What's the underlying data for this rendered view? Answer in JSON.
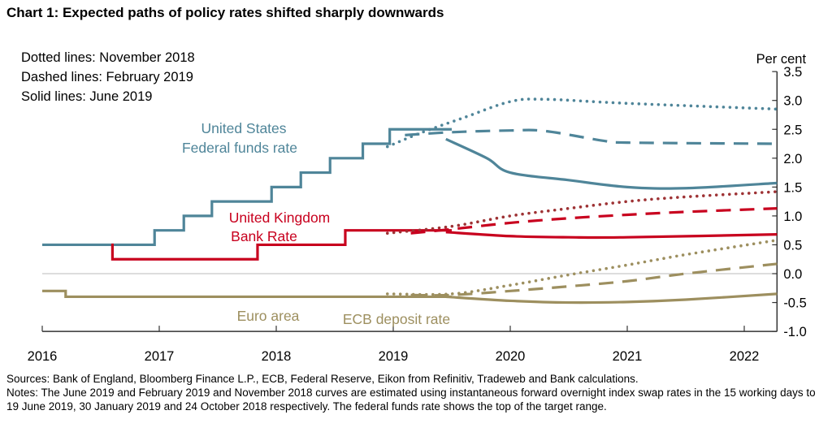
{
  "title": "Chart 1:  Expected paths of policy rates shifted sharply downwards",
  "notes_legend": [
    "Dotted lines: November 2018",
    "Dashed lines: February 2019",
    "Solid lines: June 2019"
  ],
  "footer": {
    "sources": "Sources:  Bank of England, Bloomberg Finance L.P., ECB, Federal Reserve, Eikon from Refinitiv, Tradeweb and Bank calculations.",
    "notes": "Notes:  The June 2019 and February 2019 and November 2018 curves are estimated using instantaneous forward overnight index swap rates in the 15 working days to 19 June 2019, 30 January 2019 and 24 October 2018 respectively.  The federal funds rate shows the top of the target range."
  },
  "chart_data": {
    "type": "line",
    "ylabel": "Per cent",
    "ylim": [
      -1.0,
      3.5
    ],
    "xlim": [
      2016,
      2022.28
    ],
    "yticks": [
      "3.5",
      "3.0",
      "2.5",
      "2.0",
      "1.5",
      "1.0",
      "0.5",
      "0.0",
      "-0.5",
      "-1.0"
    ],
    "xticks": [
      "2016",
      "2017",
      "2018",
      "2019",
      "2020",
      "2021",
      "2022"
    ],
    "grid": false,
    "colors": {
      "us": "#4f8599",
      "uk": "#c8001e",
      "uk_dotted": "#9e3234",
      "ea": "#9d8f5f"
    },
    "labels": {
      "us": [
        "United States",
        "Federal funds rate"
      ],
      "uk": [
        "United Kingdom",
        "Bank Rate"
      ],
      "ea_1": "Euro area",
      "ea_2": "ECB deposit rate"
    },
    "series": [
      {
        "key": "us",
        "style": "step",
        "x": [
          2016,
          2016.96,
          2017.21,
          2017.45,
          2017.96,
          2018.21,
          2018.46,
          2018.74,
          2018.97,
          2019.5
        ],
        "y": [
          0.5,
          0.75,
          1.0,
          1.25,
          1.5,
          1.75,
          2.0,
          2.25,
          2.5,
          2.5
        ]
      },
      {
        "key": "uk",
        "style": "step",
        "x": [
          2016.59,
          2016.6,
          2017.84,
          2018.59,
          2019.5
        ],
        "y": [
          0.5,
          0.25,
          0.5,
          0.75,
          0.75
        ]
      },
      {
        "key": "ea",
        "style": "step",
        "x": [
          2016,
          2016.2,
          2019.5
        ],
        "y": [
          -0.3,
          -0.4,
          -0.4
        ]
      },
      {
        "key": "us",
        "style": "dotted",
        "x": [
          2018.95,
          2019.25,
          2019.6,
          2020,
          2020.3,
          2021,
          2022.28
        ],
        "y": [
          2.2,
          2.45,
          2.7,
          2.98,
          3.02,
          2.95,
          2.85
        ]
      },
      {
        "key": "us",
        "style": "dashed",
        "x": [
          2019.1,
          2019.5,
          2020,
          2020.3,
          2020.8,
          2021,
          2022.28
        ],
        "y": [
          2.4,
          2.45,
          2.48,
          2.47,
          2.3,
          2.27,
          2.25
        ]
      },
      {
        "key": "us",
        "style": "solid",
        "x": [
          2019.45,
          2019.8,
          2020,
          2020.5,
          2021,
          2021.5,
          2022.28
        ],
        "y": [
          2.33,
          2.0,
          1.75,
          1.62,
          1.5,
          1.48,
          1.57
        ]
      },
      {
        "key": "uk_dotted",
        "style": "dotted",
        "x": [
          2018.95,
          2019.5,
          2020,
          2020.5,
          2021,
          2021.5,
          2022.28
        ],
        "y": [
          0.7,
          0.82,
          1.0,
          1.13,
          1.25,
          1.33,
          1.42
        ]
      },
      {
        "key": "uk",
        "style": "dashed",
        "x": [
          2019.15,
          2019.5,
          2020,
          2020.5,
          2021,
          2021.5,
          2022.28
        ],
        "y": [
          0.7,
          0.77,
          0.88,
          0.96,
          1.02,
          1.07,
          1.13
        ]
      },
      {
        "key": "uk",
        "style": "solid",
        "x": [
          2019.45,
          2020,
          2020.5,
          2021,
          2022.28
        ],
        "y": [
          0.72,
          0.65,
          0.63,
          0.63,
          0.68
        ]
      },
      {
        "key": "ea",
        "style": "dotted",
        "x": [
          2018.95,
          2019.5,
          2020,
          2020.5,
          2021,
          2021.5,
          2022.28
        ],
        "y": [
          -0.35,
          -0.35,
          -0.2,
          -0.02,
          0.15,
          0.33,
          0.58
        ]
      },
      {
        "key": "ea",
        "style": "dashed",
        "x": [
          2019.15,
          2019.5,
          2020,
          2020.5,
          2021,
          2021.5,
          2022.28
        ],
        "y": [
          -0.37,
          -0.37,
          -0.3,
          -0.22,
          -0.13,
          0.0,
          0.17
        ]
      },
      {
        "key": "ea",
        "style": "solid",
        "x": [
          2019.45,
          2020,
          2020.5,
          2021,
          2021.5,
          2022.28
        ],
        "y": [
          -0.4,
          -0.47,
          -0.5,
          -0.49,
          -0.45,
          -0.35
        ]
      }
    ]
  }
}
